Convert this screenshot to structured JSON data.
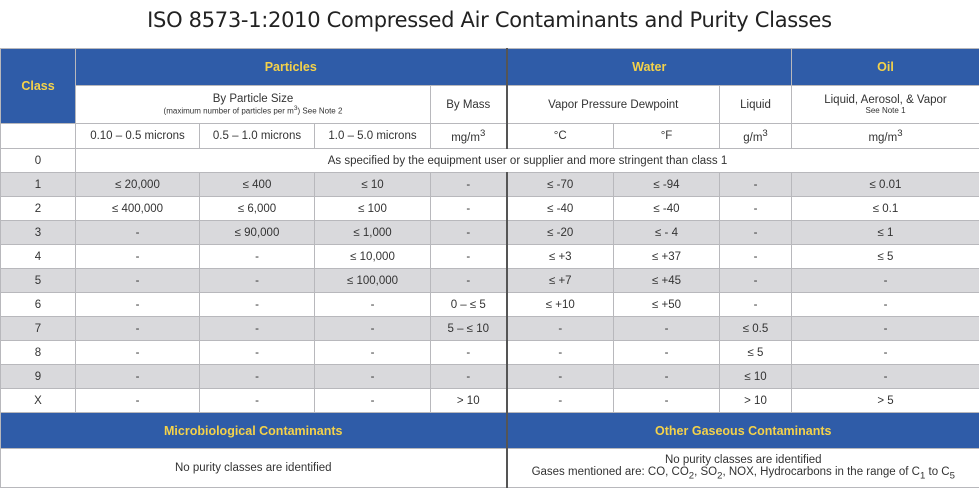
{
  "title": "ISO 8573-1:2010 Compressed Air Contaminants and Purity Classes",
  "header": {
    "class": "Class",
    "groups": [
      "Particles",
      "Water",
      "Oil"
    ],
    "particle_size": {
      "label": "By Particle Size",
      "note": [
        "(maximum number of particles per m",
        "3",
        ") See Note 2"
      ]
    },
    "by_mass": "By Mass",
    "vapor": "Vapor Pressure Dewpoint",
    "liquid": "Liquid",
    "oil": {
      "label": "Liquid, Aerosol, & Vapor",
      "note": "See Note 1"
    },
    "units": [
      [
        "0.10 – 0.5 microns"
      ],
      [
        "0.5 – 1.0 microns"
      ],
      [
        "1.0 – 5.0 microns"
      ],
      [
        "mg/m",
        "3"
      ],
      [
        "°C"
      ],
      [
        "°F"
      ],
      [
        "g/m",
        "3"
      ],
      [
        "mg/m",
        "3"
      ]
    ]
  },
  "class0": {
    "class": "0",
    "text": "As specified by the equipment user or supplier and more stringent than class 1"
  },
  "rows": [
    [
      "1",
      "≤ 20,000",
      "≤ 400",
      "≤ 10",
      "-",
      "≤ -70",
      "≤ -94",
      "-",
      "≤ 0.01"
    ],
    [
      "2",
      "≤ 400,000",
      "≤ 6,000",
      "≤ 100",
      "-",
      "≤ -40",
      "≤ -40",
      "-",
      "≤ 0.1"
    ],
    [
      "3",
      "-",
      "≤ 90,000",
      "≤ 1,000",
      "-",
      "≤ -20",
      "≤ - 4",
      "-",
      "≤ 1"
    ],
    [
      "4",
      "-",
      "-",
      "≤ 10,000",
      "-",
      "≤ +3",
      "≤ +37",
      "-",
      "≤ 5"
    ],
    [
      "5",
      "-",
      "-",
      "≤ 100,000",
      "-",
      "≤ +7",
      "≤ +45",
      "-",
      "-"
    ],
    [
      "6",
      "-",
      "-",
      "-",
      "0 – ≤ 5",
      "≤ +10",
      "≤ +50",
      "-",
      "-"
    ],
    [
      "7",
      "-",
      "-",
      "-",
      "5 – ≤ 10",
      "-",
      "-",
      "≤ 0.5",
      "-"
    ],
    [
      "8",
      "-",
      "-",
      "-",
      "-",
      "-",
      "-",
      "≤ 5",
      "-"
    ],
    [
      "9",
      "-",
      "-",
      "-",
      "-",
      "-",
      "-",
      "≤ 10",
      "-"
    ],
    [
      "X",
      "-",
      "-",
      "-",
      "> 10",
      "-",
      "-",
      "> 10",
      "> 5"
    ]
  ],
  "footer": {
    "micro_title": "Microbiological Contaminants",
    "gas_title": "Other Gaseous Contaminants",
    "micro_text": "No purity classes are identified",
    "gas_text": "No purity classes are identified",
    "gas_parts": [
      "Gases mentioned are: CO, CO",
      "2",
      ", SO",
      "2",
      ", NOX, Hydrocarbons in the range of C",
      "1",
      " to C",
      "5"
    ]
  }
}
